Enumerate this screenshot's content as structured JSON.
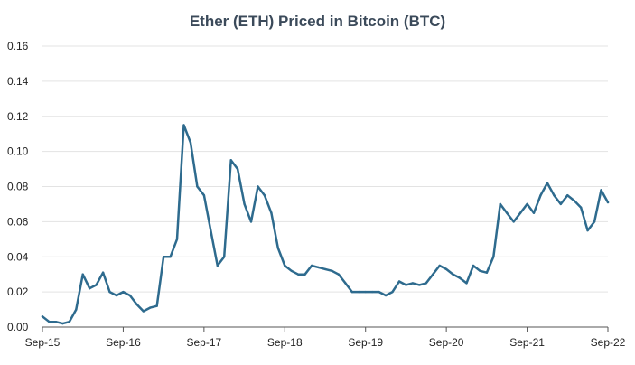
{
  "chart_data": {
    "type": "line",
    "title": "Ether (ETH) Priced in Bitcoin (BTC)",
    "xlabel": "",
    "ylabel": "",
    "ylim": [
      0,
      0.16
    ],
    "y_ticks": [
      "0.00",
      "0.02",
      "0.04",
      "0.06",
      "0.08",
      "0.10",
      "0.12",
      "0.14",
      "0.16"
    ],
    "x_ticks": [
      "Sep-15",
      "Sep-16",
      "Sep-17",
      "Sep-18",
      "Sep-19",
      "Sep-20",
      "Sep-21",
      "Sep-22"
    ],
    "grid": "horizontal",
    "line_color": "#2e6b8e",
    "series": [
      {
        "points": [
          [
            "Sep-15",
            0.006
          ],
          [
            "Oct-15",
            0.003
          ],
          [
            "Nov-15",
            0.003
          ],
          [
            "Dec-15",
            0.002
          ],
          [
            "Jan-16",
            0.003
          ],
          [
            "Feb-16",
            0.01
          ],
          [
            "Mar-16",
            0.03
          ],
          [
            "Apr-16",
            0.022
          ],
          [
            "May-16",
            0.024
          ],
          [
            "Jun-16",
            0.031
          ],
          [
            "Jul-16",
            0.02
          ],
          [
            "Aug-16",
            0.018
          ],
          [
            "Sep-16",
            0.02
          ],
          [
            "Oct-16",
            0.018
          ],
          [
            "Nov-16",
            0.013
          ],
          [
            "Dec-16",
            0.009
          ],
          [
            "Jan-17",
            0.011
          ],
          [
            "Feb-17",
            0.012
          ],
          [
            "Mar-17",
            0.04
          ],
          [
            "Apr-17",
            0.04
          ],
          [
            "May-17",
            0.05
          ],
          [
            "Jun-17",
            0.115
          ],
          [
            "Jul-17",
            0.105
          ],
          [
            "Aug-17",
            0.08
          ],
          [
            "Sep-17",
            0.075
          ],
          [
            "Oct-17",
            0.055
          ],
          [
            "Nov-17",
            0.035
          ],
          [
            "Dec-17",
            0.04
          ],
          [
            "Jan-18",
            0.095
          ],
          [
            "Feb-18",
            0.09
          ],
          [
            "Mar-18",
            0.07
          ],
          [
            "Apr-18",
            0.06
          ],
          [
            "May-18",
            0.08
          ],
          [
            "Jun-18",
            0.075
          ],
          [
            "Jul-18",
            0.065
          ],
          [
            "Aug-18",
            0.045
          ],
          [
            "Sep-18",
            0.035
          ],
          [
            "Oct-18",
            0.032
          ],
          [
            "Nov-18",
            0.03
          ],
          [
            "Dec-18",
            0.03
          ],
          [
            "Jan-19",
            0.035
          ],
          [
            "Feb-19",
            0.034
          ],
          [
            "Mar-19",
            0.033
          ],
          [
            "Apr-19",
            0.032
          ],
          [
            "May-19",
            0.03
          ],
          [
            "Jun-19",
            0.025
          ],
          [
            "Jul-19",
            0.02
          ],
          [
            "Aug-19",
            0.02
          ],
          [
            "Sep-19",
            0.02
          ],
          [
            "Oct-19",
            0.02
          ],
          [
            "Nov-19",
            0.02
          ],
          [
            "Dec-19",
            0.018
          ],
          [
            "Jan-20",
            0.02
          ],
          [
            "Feb-20",
            0.026
          ],
          [
            "Mar-20",
            0.024
          ],
          [
            "Apr-20",
            0.025
          ],
          [
            "May-20",
            0.024
          ],
          [
            "Jun-20",
            0.025
          ],
          [
            "Jul-20",
            0.03
          ],
          [
            "Aug-20",
            0.035
          ],
          [
            "Sep-20",
            0.033
          ],
          [
            "Oct-20",
            0.03
          ],
          [
            "Nov-20",
            0.028
          ],
          [
            "Dec-20",
            0.025
          ],
          [
            "Jan-21",
            0.035
          ],
          [
            "Feb-21",
            0.032
          ],
          [
            "Mar-21",
            0.031
          ],
          [
            "Apr-21",
            0.04
          ],
          [
            "May-21",
            0.07
          ],
          [
            "Jun-21",
            0.065
          ],
          [
            "Jul-21",
            0.06
          ],
          [
            "Aug-21",
            0.065
          ],
          [
            "Sep-21",
            0.07
          ],
          [
            "Oct-21",
            0.065
          ],
          [
            "Nov-21",
            0.075
          ],
          [
            "Dec-21",
            0.082
          ],
          [
            "Jan-22",
            0.075
          ],
          [
            "Feb-22",
            0.07
          ],
          [
            "Mar-22",
            0.075
          ],
          [
            "Apr-22",
            0.072
          ],
          [
            "May-22",
            0.068
          ],
          [
            "Jun-22",
            0.055
          ],
          [
            "Jul-22",
            0.06
          ],
          [
            "Aug-22",
            0.078
          ],
          [
            "Sep-22",
            0.071
          ]
        ]
      }
    ]
  }
}
